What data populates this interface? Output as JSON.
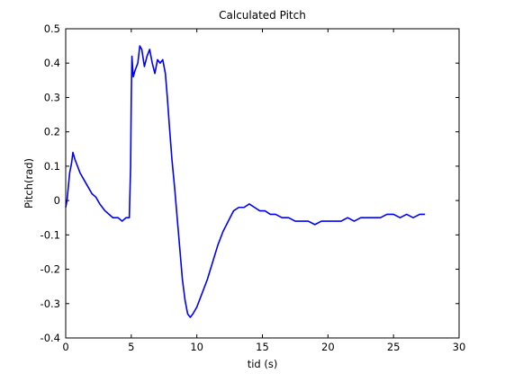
{
  "chart_data": {
    "type": "line",
    "title": "Calculated Pitch",
    "xlabel": "tid (s)",
    "ylabel": "Pitch(rad)",
    "xlim": [
      0,
      30
    ],
    "ylim": [
      -0.4,
      0.5
    ],
    "xticks": [
      "0",
      "5",
      "10",
      "15",
      "20",
      "25",
      "30"
    ],
    "yticks": [
      "0.5",
      "0.4",
      "0.3",
      "0.2",
      "0.1",
      "0",
      "-0.1",
      "-0.2",
      "-0.3",
      "-0.4"
    ],
    "grid": false,
    "line_color": "#0000ff",
    "series": [
      {
        "points": [
          [
            0.0,
            -0.02
          ],
          [
            0.1,
            0.0
          ],
          [
            0.2,
            0.04
          ],
          [
            0.3,
            0.08
          ],
          [
            0.45,
            0.11
          ],
          [
            0.55,
            0.14
          ],
          [
            0.7,
            0.12
          ],
          [
            0.9,
            0.1
          ],
          [
            1.1,
            0.08
          ],
          [
            1.4,
            0.06
          ],
          [
            1.7,
            0.04
          ],
          [
            2.0,
            0.02
          ],
          [
            2.3,
            0.01
          ],
          [
            2.6,
            -0.01
          ],
          [
            3.0,
            -0.03
          ],
          [
            3.3,
            -0.04
          ],
          [
            3.6,
            -0.05
          ],
          [
            4.0,
            -0.05
          ],
          [
            4.3,
            -0.06
          ],
          [
            4.6,
            -0.05
          ],
          [
            4.85,
            -0.05
          ],
          [
            4.95,
            0.1
          ],
          [
            5.0,
            0.3
          ],
          [
            5.05,
            0.42
          ],
          [
            5.15,
            0.36
          ],
          [
            5.3,
            0.38
          ],
          [
            5.5,
            0.4
          ],
          [
            5.65,
            0.45
          ],
          [
            5.8,
            0.44
          ],
          [
            6.0,
            0.39
          ],
          [
            6.2,
            0.42
          ],
          [
            6.4,
            0.44
          ],
          [
            6.6,
            0.4
          ],
          [
            6.8,
            0.37
          ],
          [
            7.0,
            0.41
          ],
          [
            7.2,
            0.4
          ],
          [
            7.4,
            0.41
          ],
          [
            7.6,
            0.37
          ],
          [
            7.75,
            0.3
          ],
          [
            7.9,
            0.22
          ],
          [
            8.1,
            0.12
          ],
          [
            8.3,
            0.04
          ],
          [
            8.5,
            -0.05
          ],
          [
            8.7,
            -0.14
          ],
          [
            8.9,
            -0.23
          ],
          [
            9.1,
            -0.29
          ],
          [
            9.3,
            -0.33
          ],
          [
            9.5,
            -0.34
          ],
          [
            9.7,
            -0.33
          ],
          [
            10.0,
            -0.31
          ],
          [
            10.4,
            -0.27
          ],
          [
            10.8,
            -0.23
          ],
          [
            11.2,
            -0.18
          ],
          [
            11.6,
            -0.13
          ],
          [
            12.0,
            -0.09
          ],
          [
            12.4,
            -0.06
          ],
          [
            12.8,
            -0.03
          ],
          [
            13.2,
            -0.02
          ],
          [
            13.6,
            -0.02
          ],
          [
            14.0,
            -0.01
          ],
          [
            14.4,
            -0.02
          ],
          [
            14.8,
            -0.03
          ],
          [
            15.2,
            -0.03
          ],
          [
            15.6,
            -0.04
          ],
          [
            16.0,
            -0.04
          ],
          [
            16.5,
            -0.05
          ],
          [
            17.0,
            -0.05
          ],
          [
            17.5,
            -0.06
          ],
          [
            18.0,
            -0.06
          ],
          [
            18.5,
            -0.06
          ],
          [
            19.0,
            -0.07
          ],
          [
            19.5,
            -0.06
          ],
          [
            20.0,
            -0.06
          ],
          [
            20.5,
            -0.06
          ],
          [
            21.0,
            -0.06
          ],
          [
            21.5,
            -0.05
          ],
          [
            22.0,
            -0.06
          ],
          [
            22.5,
            -0.05
          ],
          [
            23.0,
            -0.05
          ],
          [
            23.5,
            -0.05
          ],
          [
            24.0,
            -0.05
          ],
          [
            24.5,
            -0.04
          ],
          [
            25.0,
            -0.04
          ],
          [
            25.5,
            -0.05
          ],
          [
            26.0,
            -0.04
          ],
          [
            26.5,
            -0.05
          ],
          [
            27.0,
            -0.04
          ],
          [
            27.4,
            -0.04
          ]
        ]
      }
    ]
  }
}
